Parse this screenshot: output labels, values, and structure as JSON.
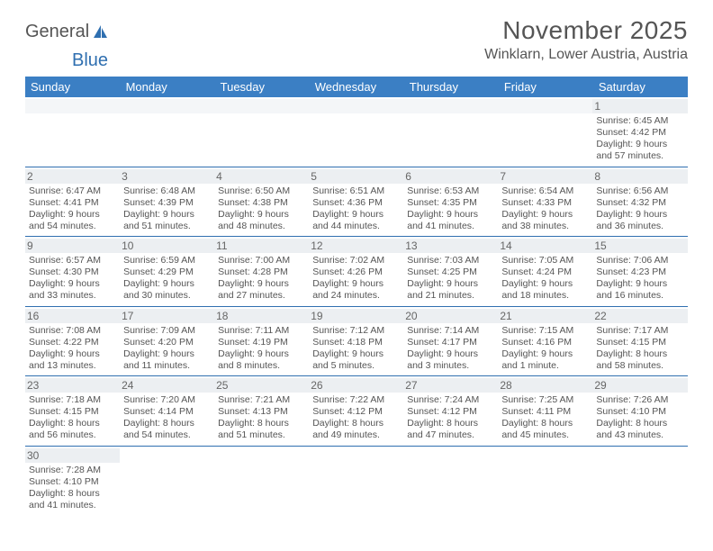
{
  "logo": {
    "text1": "General",
    "text2": "Blue"
  },
  "title": "November 2025",
  "location": "Winklarn, Lower Austria, Austria",
  "colors": {
    "header_bar": "#3b7fc4",
    "row_divider": "#2f6fb0",
    "daynum_bg": "#eceff2",
    "text": "#555555",
    "logo_blue": "#2f6fb0"
  },
  "weekdays": [
    "Sunday",
    "Monday",
    "Tuesday",
    "Wednesday",
    "Thursday",
    "Friday",
    "Saturday"
  ],
  "weeks": [
    [
      null,
      null,
      null,
      null,
      null,
      null,
      {
        "n": "1",
        "sr": "Sunrise: 6:45 AM",
        "ss": "Sunset: 4:42 PM",
        "dl1": "Daylight: 9 hours",
        "dl2": "and 57 minutes."
      }
    ],
    [
      {
        "n": "2",
        "sr": "Sunrise: 6:47 AM",
        "ss": "Sunset: 4:41 PM",
        "dl1": "Daylight: 9 hours",
        "dl2": "and 54 minutes."
      },
      {
        "n": "3",
        "sr": "Sunrise: 6:48 AM",
        "ss": "Sunset: 4:39 PM",
        "dl1": "Daylight: 9 hours",
        "dl2": "and 51 minutes."
      },
      {
        "n": "4",
        "sr": "Sunrise: 6:50 AM",
        "ss": "Sunset: 4:38 PM",
        "dl1": "Daylight: 9 hours",
        "dl2": "and 48 minutes."
      },
      {
        "n": "5",
        "sr": "Sunrise: 6:51 AM",
        "ss": "Sunset: 4:36 PM",
        "dl1": "Daylight: 9 hours",
        "dl2": "and 44 minutes."
      },
      {
        "n": "6",
        "sr": "Sunrise: 6:53 AM",
        "ss": "Sunset: 4:35 PM",
        "dl1": "Daylight: 9 hours",
        "dl2": "and 41 minutes."
      },
      {
        "n": "7",
        "sr": "Sunrise: 6:54 AM",
        "ss": "Sunset: 4:33 PM",
        "dl1": "Daylight: 9 hours",
        "dl2": "and 38 minutes."
      },
      {
        "n": "8",
        "sr": "Sunrise: 6:56 AM",
        "ss": "Sunset: 4:32 PM",
        "dl1": "Daylight: 9 hours",
        "dl2": "and 36 minutes."
      }
    ],
    [
      {
        "n": "9",
        "sr": "Sunrise: 6:57 AM",
        "ss": "Sunset: 4:30 PM",
        "dl1": "Daylight: 9 hours",
        "dl2": "and 33 minutes."
      },
      {
        "n": "10",
        "sr": "Sunrise: 6:59 AM",
        "ss": "Sunset: 4:29 PM",
        "dl1": "Daylight: 9 hours",
        "dl2": "and 30 minutes."
      },
      {
        "n": "11",
        "sr": "Sunrise: 7:00 AM",
        "ss": "Sunset: 4:28 PM",
        "dl1": "Daylight: 9 hours",
        "dl2": "and 27 minutes."
      },
      {
        "n": "12",
        "sr": "Sunrise: 7:02 AM",
        "ss": "Sunset: 4:26 PM",
        "dl1": "Daylight: 9 hours",
        "dl2": "and 24 minutes."
      },
      {
        "n": "13",
        "sr": "Sunrise: 7:03 AM",
        "ss": "Sunset: 4:25 PM",
        "dl1": "Daylight: 9 hours",
        "dl2": "and 21 minutes."
      },
      {
        "n": "14",
        "sr": "Sunrise: 7:05 AM",
        "ss": "Sunset: 4:24 PM",
        "dl1": "Daylight: 9 hours",
        "dl2": "and 18 minutes."
      },
      {
        "n": "15",
        "sr": "Sunrise: 7:06 AM",
        "ss": "Sunset: 4:23 PM",
        "dl1": "Daylight: 9 hours",
        "dl2": "and 16 minutes."
      }
    ],
    [
      {
        "n": "16",
        "sr": "Sunrise: 7:08 AM",
        "ss": "Sunset: 4:22 PM",
        "dl1": "Daylight: 9 hours",
        "dl2": "and 13 minutes."
      },
      {
        "n": "17",
        "sr": "Sunrise: 7:09 AM",
        "ss": "Sunset: 4:20 PM",
        "dl1": "Daylight: 9 hours",
        "dl2": "and 11 minutes."
      },
      {
        "n": "18",
        "sr": "Sunrise: 7:11 AM",
        "ss": "Sunset: 4:19 PM",
        "dl1": "Daylight: 9 hours",
        "dl2": "and 8 minutes."
      },
      {
        "n": "19",
        "sr": "Sunrise: 7:12 AM",
        "ss": "Sunset: 4:18 PM",
        "dl1": "Daylight: 9 hours",
        "dl2": "and 5 minutes."
      },
      {
        "n": "20",
        "sr": "Sunrise: 7:14 AM",
        "ss": "Sunset: 4:17 PM",
        "dl1": "Daylight: 9 hours",
        "dl2": "and 3 minutes."
      },
      {
        "n": "21",
        "sr": "Sunrise: 7:15 AM",
        "ss": "Sunset: 4:16 PM",
        "dl1": "Daylight: 9 hours",
        "dl2": "and 1 minute."
      },
      {
        "n": "22",
        "sr": "Sunrise: 7:17 AM",
        "ss": "Sunset: 4:15 PM",
        "dl1": "Daylight: 8 hours",
        "dl2": "and 58 minutes."
      }
    ],
    [
      {
        "n": "23",
        "sr": "Sunrise: 7:18 AM",
        "ss": "Sunset: 4:15 PM",
        "dl1": "Daylight: 8 hours",
        "dl2": "and 56 minutes."
      },
      {
        "n": "24",
        "sr": "Sunrise: 7:20 AM",
        "ss": "Sunset: 4:14 PM",
        "dl1": "Daylight: 8 hours",
        "dl2": "and 54 minutes."
      },
      {
        "n": "25",
        "sr": "Sunrise: 7:21 AM",
        "ss": "Sunset: 4:13 PM",
        "dl1": "Daylight: 8 hours",
        "dl2": "and 51 minutes."
      },
      {
        "n": "26",
        "sr": "Sunrise: 7:22 AM",
        "ss": "Sunset: 4:12 PM",
        "dl1": "Daylight: 8 hours",
        "dl2": "and 49 minutes."
      },
      {
        "n": "27",
        "sr": "Sunrise: 7:24 AM",
        "ss": "Sunset: 4:12 PM",
        "dl1": "Daylight: 8 hours",
        "dl2": "and 47 minutes."
      },
      {
        "n": "28",
        "sr": "Sunrise: 7:25 AM",
        "ss": "Sunset: 4:11 PM",
        "dl1": "Daylight: 8 hours",
        "dl2": "and 45 minutes."
      },
      {
        "n": "29",
        "sr": "Sunrise: 7:26 AM",
        "ss": "Sunset: 4:10 PM",
        "dl1": "Daylight: 8 hours",
        "dl2": "and 43 minutes."
      }
    ],
    [
      {
        "n": "30",
        "sr": "Sunrise: 7:28 AM",
        "ss": "Sunset: 4:10 PM",
        "dl1": "Daylight: 8 hours",
        "dl2": "and 41 minutes."
      },
      null,
      null,
      null,
      null,
      null,
      null
    ]
  ]
}
